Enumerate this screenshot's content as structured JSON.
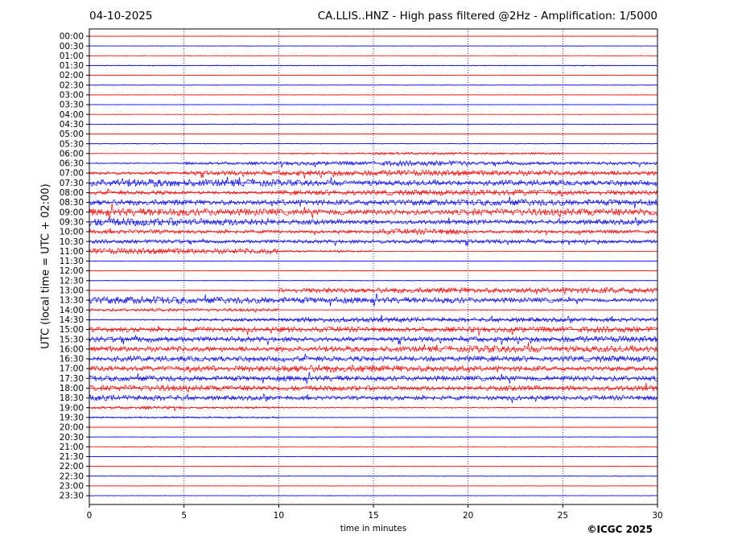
{
  "header": {
    "date": "04-10-2025",
    "title": "CA.LLIS..HNZ - High pass filtered @2Hz - Amplification: 1/5000"
  },
  "footer": {
    "copyright": "©ICGC 2025"
  },
  "colors": {
    "trace_a": "#ff0000",
    "trace_b": "#0000ff",
    "grid": "#0000aa",
    "axis": "#000000"
  },
  "chart_data": {
    "type": "line",
    "title": "CA.LLIS..HNZ - High pass filtered @2Hz - Amplification: 1/5000",
    "xlabel": "time in minutes",
    "ylabel": "UTC (local time = UTC + 02:00)",
    "xlim": [
      0,
      30
    ],
    "xticks": [
      "0",
      "5",
      "10",
      "15",
      "20",
      "25",
      "30"
    ],
    "vertical_grid_minutes": [
      5,
      10,
      15,
      20,
      25
    ],
    "grid": true,
    "traces": [
      {
        "label": "00:00",
        "color": "#ff0000",
        "activity": [
          0.05,
          0.05,
          0.05,
          0.05,
          0.05,
          0.05
        ]
      },
      {
        "label": "00:30",
        "color": "#0000ff",
        "activity": [
          0.05,
          0.05,
          0.05,
          0.05,
          0.05,
          0.05
        ]
      },
      {
        "label": "01:00",
        "color": "#ff0000",
        "activity": [
          0.05,
          0.05,
          0.05,
          0.05,
          0.05,
          0.05
        ]
      },
      {
        "label": "01:30",
        "color": "#0000ff",
        "activity": [
          0.08,
          0.08,
          0.08,
          0.08,
          0.08,
          0.08
        ]
      },
      {
        "label": "02:00",
        "color": "#ff0000",
        "activity": [
          0.05,
          0.05,
          0.05,
          0.05,
          0.05,
          0.05
        ]
      },
      {
        "label": "02:30",
        "color": "#0000ff",
        "activity": [
          0.05,
          0.05,
          0.05,
          0.05,
          0.05,
          0.05
        ]
      },
      {
        "label": "03:00",
        "color": "#ff0000",
        "activity": [
          0.05,
          0.05,
          0.05,
          0.05,
          0.05,
          0.05
        ]
      },
      {
        "label": "03:30",
        "color": "#0000ff",
        "activity": [
          0.05,
          0.05,
          0.05,
          0.05,
          0.05,
          0.05
        ]
      },
      {
        "label": "04:00",
        "color": "#ff0000",
        "activity": [
          0.05,
          0.05,
          0.05,
          0.05,
          0.05,
          0.05
        ]
      },
      {
        "label": "04:30",
        "color": "#0000ff",
        "activity": [
          0.05,
          0.06,
          0.05,
          0.05,
          0.05,
          0.05
        ]
      },
      {
        "label": "05:00",
        "color": "#ff0000",
        "activity": [
          0.05,
          0.05,
          0.06,
          0.05,
          0.05,
          0.05
        ]
      },
      {
        "label": "05:30",
        "color": "#0000ff",
        "activity": [
          0.06,
          0.05,
          0.05,
          0.05,
          0.05,
          0.05
        ]
      },
      {
        "label": "06:00",
        "color": "#ff0000",
        "activity": [
          0.05,
          0.05,
          0.15,
          0.25,
          0.2,
          0.05
        ]
      },
      {
        "label": "06:30",
        "color": "#0000ff",
        "activity": [
          0.1,
          0.3,
          0.4,
          0.55,
          0.35,
          0.3
        ]
      },
      {
        "label": "07:00",
        "color": "#ff0000",
        "activity": [
          0.3,
          0.45,
          0.55,
          0.6,
          0.55,
          0.45
        ]
      },
      {
        "label": "07:30",
        "color": "#0000ff",
        "activity": [
          0.8,
          0.7,
          0.6,
          0.5,
          0.55,
          0.5
        ]
      },
      {
        "label": "08:00",
        "color": "#ff0000",
        "activity": [
          0.4,
          0.3,
          0.5,
          0.55,
          0.6,
          0.5
        ]
      },
      {
        "label": "08:30",
        "color": "#0000ff",
        "activity": [
          0.6,
          0.5,
          0.55,
          0.6,
          0.65,
          0.6
        ]
      },
      {
        "label": "09:00",
        "color": "#ff0000",
        "activity": [
          0.8,
          0.7,
          0.6,
          0.55,
          0.7,
          0.75
        ]
      },
      {
        "label": "09:30",
        "color": "#0000ff",
        "activity": [
          0.8,
          0.7,
          0.5,
          0.4,
          0.45,
          0.5
        ]
      },
      {
        "label": "10:00",
        "color": "#ff0000",
        "activity": [
          0.4,
          0.35,
          0.3,
          0.6,
          0.3,
          0.35
        ]
      },
      {
        "label": "10:30",
        "color": "#0000ff",
        "activity": [
          0.4,
          0.35,
          0.35,
          0.4,
          0.4,
          0.35
        ]
      },
      {
        "label": "11:00",
        "color": "#ff0000",
        "activity": [
          0.6,
          0.55,
          0.2,
          0.05,
          0.05,
          0.05
        ]
      },
      {
        "label": "11:30",
        "color": "#0000ff",
        "activity": [
          0.05,
          0.05,
          0.05,
          0.05,
          0.05,
          0.05
        ]
      },
      {
        "label": "12:00",
        "color": "#ff0000",
        "activity": [
          0.05,
          0.05,
          0.05,
          0.05,
          0.05,
          0.05
        ]
      },
      {
        "label": "12:30",
        "color": "#0000ff",
        "activity": [
          0.05,
          0.05,
          0.06,
          0.05,
          0.05,
          0.05
        ]
      },
      {
        "label": "13:00",
        "color": "#ff0000",
        "activity": [
          0.05,
          0.1,
          0.5,
          0.55,
          0.5,
          0.6
        ]
      },
      {
        "label": "13:30",
        "color": "#0000ff",
        "activity": [
          0.75,
          0.65,
          0.6,
          0.6,
          0.5,
          0.4
        ]
      },
      {
        "label": "14:00",
        "color": "#ff0000",
        "activity": [
          0.3,
          0.3,
          0.05,
          0.05,
          0.1,
          0.05
        ]
      },
      {
        "label": "14:30",
        "color": "#0000ff",
        "activity": [
          0.1,
          0.3,
          0.5,
          0.45,
          0.45,
          0.4
        ]
      },
      {
        "label": "15:00",
        "color": "#ff0000",
        "activity": [
          0.5,
          0.5,
          0.55,
          0.5,
          0.55,
          0.6
        ]
      },
      {
        "label": "15:30",
        "color": "#0000ff",
        "activity": [
          0.55,
          0.5,
          0.5,
          0.5,
          0.55,
          0.6
        ]
      },
      {
        "label": "16:00",
        "color": "#ff0000",
        "activity": [
          0.55,
          0.5,
          0.55,
          0.55,
          0.7,
          0.6
        ]
      },
      {
        "label": "16:30",
        "color": "#0000ff",
        "activity": [
          0.55,
          0.5,
          0.5,
          0.5,
          0.55,
          0.6
        ]
      },
      {
        "label": "17:00",
        "color": "#ff0000",
        "activity": [
          0.5,
          0.6,
          0.75,
          0.6,
          0.5,
          0.45
        ]
      },
      {
        "label": "17:30",
        "color": "#0000ff",
        "activity": [
          0.55,
          0.5,
          0.55,
          0.5,
          0.5,
          0.55
        ]
      },
      {
        "label": "18:00",
        "color": "#ff0000",
        "activity": [
          0.6,
          0.55,
          0.5,
          0.45,
          0.5,
          0.5
        ]
      },
      {
        "label": "18:30",
        "color": "#0000ff",
        "activity": [
          0.55,
          0.45,
          0.4,
          0.45,
          0.45,
          0.5
        ]
      },
      {
        "label": "19:00",
        "color": "#ff0000",
        "activity": [
          0.3,
          0.2,
          0.1,
          0.1,
          0.1,
          0.05
        ]
      },
      {
        "label": "19:30",
        "color": "#0000ff",
        "activity": [
          0.15,
          0.15,
          0.05,
          0.05,
          0.05,
          0.05
        ]
      },
      {
        "label": "20:00",
        "color": "#ff0000",
        "activity": [
          0.05,
          0.05,
          0.05,
          0.05,
          0.05,
          0.05
        ]
      },
      {
        "label": "20:30",
        "color": "#0000ff",
        "activity": [
          0.05,
          0.05,
          0.05,
          0.05,
          0.05,
          0.05
        ]
      },
      {
        "label": "21:00",
        "color": "#ff0000",
        "activity": [
          0.06,
          0.05,
          0.05,
          0.05,
          0.05,
          0.05
        ]
      },
      {
        "label": "21:30",
        "color": "#0000ff",
        "activity": [
          0.05,
          0.05,
          0.06,
          0.05,
          0.05,
          0.05
        ]
      },
      {
        "label": "22:00",
        "color": "#ff0000",
        "activity": [
          0.05,
          0.05,
          0.05,
          0.05,
          0.05,
          0.05
        ]
      },
      {
        "label": "22:30",
        "color": "#0000ff",
        "activity": [
          0.05,
          0.05,
          0.05,
          0.05,
          0.05,
          0.06
        ]
      },
      {
        "label": "23:00",
        "color": "#ff0000",
        "activity": [
          0.05,
          0.05,
          0.05,
          0.05,
          0.05,
          0.05
        ]
      },
      {
        "label": "23:30",
        "color": "#0000ff",
        "activity": [
          0.05,
          0.05,
          0.05,
          0.05,
          0.05,
          0.05
        ]
      }
    ]
  }
}
